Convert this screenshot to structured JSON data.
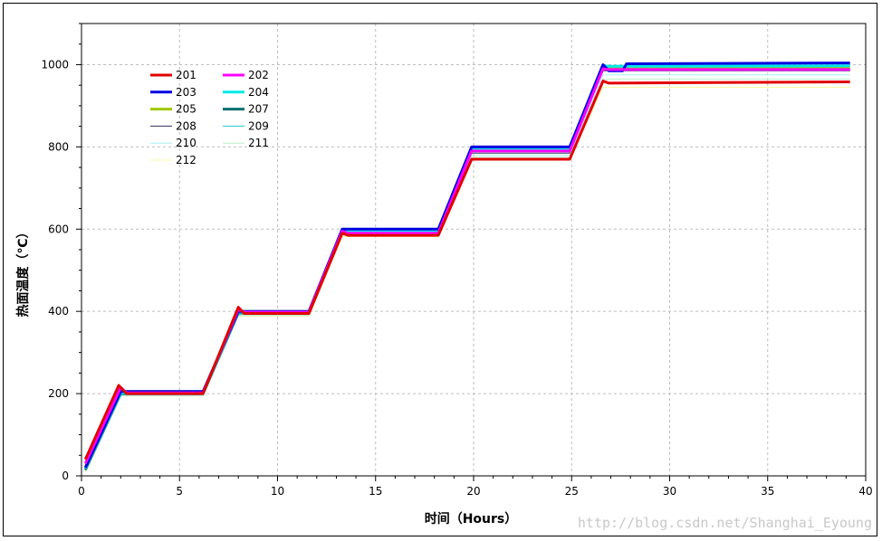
{
  "chart_data": {
    "type": "line",
    "title": "",
    "xlabel": "时间（Hours）",
    "ylabel": "热面温度（℃）",
    "xlim": [
      0,
      40
    ],
    "ylim": [
      0,
      1100
    ],
    "xticks": [
      0,
      5,
      10,
      15,
      20,
      25,
      30,
      35,
      40
    ],
    "yticks": [
      0,
      200,
      400,
      600,
      800,
      1000
    ],
    "grid": true,
    "legend_placement": "top-left",
    "watermark": "http://blog.csdn.net/Shanghai_Eyoung",
    "series": [
      {
        "name": "201",
        "color": "#e00000",
        "width": 3,
        "points": [
          [
            0.2,
            40
          ],
          [
            1.9,
            220
          ],
          [
            2.3,
            200
          ],
          [
            6.2,
            200
          ],
          [
            8,
            410
          ],
          [
            8.3,
            395
          ],
          [
            11.6,
            395
          ],
          [
            13.3,
            590
          ],
          [
            13.6,
            585
          ],
          [
            18.2,
            585
          ],
          [
            19.9,
            770
          ],
          [
            20.2,
            770
          ],
          [
            24.9,
            770
          ],
          [
            26.6,
            960
          ],
          [
            26.9,
            955
          ],
          [
            39.2,
            958
          ]
        ]
      },
      {
        "name": "202",
        "color": "#ff00ff",
        "width": 3,
        "points": [
          [
            0.2,
            30
          ],
          [
            2.0,
            215
          ],
          [
            2.3,
            202
          ],
          [
            6.2,
            202
          ],
          [
            8,
            405
          ],
          [
            8.3,
            398
          ],
          [
            11.6,
            398
          ],
          [
            13.3,
            595
          ],
          [
            13.6,
            590
          ],
          [
            18.2,
            590
          ],
          [
            19.9,
            790
          ],
          [
            20.2,
            790
          ],
          [
            24.9,
            790
          ],
          [
            26.6,
            990
          ],
          [
            26.9,
            988
          ],
          [
            39.2,
            988
          ]
        ]
      },
      {
        "name": "203",
        "color": "#0000e0",
        "width": 3,
        "points": [
          [
            0.2,
            20
          ],
          [
            2.0,
            205
          ],
          [
            2.3,
            205
          ],
          [
            6.2,
            205
          ],
          [
            8,
            400
          ],
          [
            8.3,
            400
          ],
          [
            11.6,
            400
          ],
          [
            13.3,
            600
          ],
          [
            13.6,
            600
          ],
          [
            18.2,
            600
          ],
          [
            19.9,
            800
          ],
          [
            20.2,
            800
          ],
          [
            24.9,
            800
          ],
          [
            26.6,
            1000
          ],
          [
            26.9,
            985
          ],
          [
            27.6,
            985
          ],
          [
            27.8,
            1002
          ],
          [
            39.2,
            1004
          ]
        ]
      },
      {
        "name": "204",
        "color": "#00e8e8",
        "width": 3,
        "points": [
          [
            0.2,
            18
          ],
          [
            2.0,
            202
          ],
          [
            2.3,
            202
          ],
          [
            6.2,
            202
          ],
          [
            8,
            398
          ],
          [
            8.3,
            398
          ],
          [
            11.6,
            398
          ],
          [
            13.3,
            595
          ],
          [
            13.6,
            595
          ],
          [
            18.2,
            595
          ],
          [
            19.9,
            795
          ],
          [
            20.2,
            795
          ],
          [
            24.9,
            795
          ],
          [
            26.6,
            998
          ],
          [
            26.9,
            996
          ],
          [
            39.2,
            997
          ]
        ]
      },
      {
        "name": "205",
        "color": "#a0c800",
        "width": 3,
        "points": [
          [
            0.2,
            22
          ],
          [
            2.0,
            208
          ],
          [
            2.3,
            205
          ],
          [
            6.2,
            205
          ],
          [
            8,
            402
          ],
          [
            8.3,
            400
          ],
          [
            11.6,
            400
          ],
          [
            13.3,
            598
          ],
          [
            13.6,
            592
          ],
          [
            18.2,
            592
          ],
          [
            19.9,
            790
          ],
          [
            20.2,
            792
          ],
          [
            24.9,
            792
          ],
          [
            26.6,
            990
          ],
          [
            26.9,
            992
          ],
          [
            39.2,
            993
          ]
        ]
      },
      {
        "name": "207",
        "color": "#007070",
        "width": 3,
        "points": [
          [
            0.2,
            15
          ],
          [
            2.0,
            200
          ],
          [
            2.3,
            200
          ],
          [
            6.2,
            200
          ],
          [
            8,
            396
          ],
          [
            8.3,
            396
          ],
          [
            11.6,
            396
          ],
          [
            13.3,
            592
          ],
          [
            13.6,
            592
          ],
          [
            18.2,
            592
          ],
          [
            19.9,
            795
          ],
          [
            20.2,
            795
          ],
          [
            24.9,
            795
          ],
          [
            26.6,
            990
          ],
          [
            26.9,
            988
          ],
          [
            39.2,
            988
          ]
        ]
      },
      {
        "name": "208",
        "color": "#303060",
        "width": 1,
        "points": [
          [
            0.2,
            35
          ],
          [
            1.9,
            212
          ],
          [
            2.3,
            203
          ],
          [
            6.2,
            203
          ],
          [
            8,
            404
          ],
          [
            8.3,
            399
          ],
          [
            11.6,
            399
          ],
          [
            13.3,
            596
          ],
          [
            13.6,
            593
          ],
          [
            18.2,
            593
          ],
          [
            19.9,
            785
          ],
          [
            20.2,
            785
          ],
          [
            24.9,
            785
          ],
          [
            26.6,
            985
          ],
          [
            26.9,
            985
          ],
          [
            39.2,
            985
          ]
        ]
      },
      {
        "name": "209",
        "color": "#20c8c8",
        "width": 1,
        "points": [
          [
            0.2,
            14
          ],
          [
            2.0,
            198
          ],
          [
            2.3,
            198
          ],
          [
            6.2,
            198
          ],
          [
            8,
            394
          ],
          [
            8.3,
            394
          ],
          [
            11.6,
            394
          ],
          [
            13.3,
            590
          ],
          [
            13.6,
            590
          ],
          [
            18.2,
            590
          ],
          [
            19.9,
            792
          ],
          [
            20.2,
            792
          ],
          [
            24.9,
            792
          ],
          [
            26.6,
            995
          ],
          [
            26.9,
            995
          ],
          [
            39.2,
            995
          ]
        ]
      },
      {
        "name": "210",
        "color": "#a8f0f0",
        "width": 1,
        "points": [
          [
            0.2,
            12
          ],
          [
            2.0,
            196
          ],
          [
            2.3,
            196
          ],
          [
            6.2,
            196
          ],
          [
            8,
            392
          ],
          [
            8.3,
            392
          ],
          [
            11.6,
            392
          ],
          [
            13.3,
            588
          ],
          [
            13.6,
            588
          ],
          [
            18.2,
            588
          ],
          [
            19.9,
            780
          ],
          [
            20.2,
            780
          ],
          [
            24.9,
            780
          ],
          [
            26.6,
            975
          ],
          [
            26.9,
            975
          ],
          [
            39.2,
            975
          ]
        ]
      },
      {
        "name": "211",
        "color": "#b8f0c8",
        "width": 1,
        "points": [
          [
            0.2,
            10
          ],
          [
            2.0,
            195
          ],
          [
            2.3,
            195
          ],
          [
            6.2,
            195
          ],
          [
            8,
            390
          ],
          [
            8.3,
            390
          ],
          [
            11.6,
            390
          ],
          [
            13.3,
            586
          ],
          [
            13.6,
            586
          ],
          [
            18.2,
            586
          ],
          [
            19.9,
            775
          ],
          [
            20.2,
            775
          ],
          [
            24.9,
            775
          ],
          [
            26.6,
            965
          ],
          [
            26.9,
            965
          ],
          [
            39.2,
            965
          ]
        ]
      },
      {
        "name": "212",
        "color": "#f8f8a0",
        "width": 1,
        "points": [
          [
            0.2,
            8
          ],
          [
            2.0,
            194
          ],
          [
            2.3,
            194
          ],
          [
            6.2,
            194
          ],
          [
            8,
            388
          ],
          [
            8.3,
            388
          ],
          [
            11.6,
            388
          ],
          [
            13.3,
            582
          ],
          [
            13.6,
            582
          ],
          [
            18.2,
            582
          ],
          [
            19.9,
            768
          ],
          [
            20.2,
            768
          ],
          [
            24.9,
            768
          ],
          [
            26.6,
            945
          ],
          [
            26.9,
            945
          ],
          [
            39.2,
            945
          ]
        ]
      }
    ]
  }
}
